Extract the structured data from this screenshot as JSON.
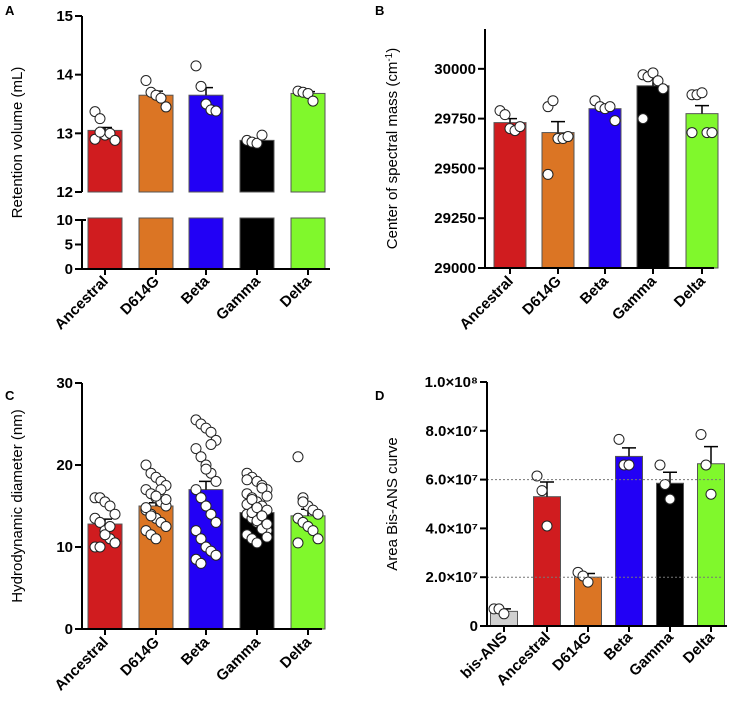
{
  "colors": {
    "Ancestral": "#d01c1f",
    "D614G": "#db7524",
    "Beta": "#2200f5",
    "Gamma": "#000000",
    "Delta": "#80f82c",
    "bis-ANS": "#d0d0d0"
  },
  "chart_data": [
    {
      "panel": "A",
      "type": "bar",
      "ylabel": "Retention volume (mL)",
      "broken_axis": true,
      "ylim_lower": [
        0,
        10
      ],
      "ylim_upper": [
        12,
        15
      ],
      "tick_labels_lower": [
        "0",
        "5",
        "10"
      ],
      "tick_values_lower": [
        0,
        5,
        10
      ],
      "tick_labels_upper": [
        "12",
        "13",
        "14",
        "15"
      ],
      "tick_values_upper": [
        12,
        13,
        14,
        15
      ],
      "categories": [
        "Ancestral",
        "D614G",
        "Beta",
        "Gamma",
        "Delta"
      ],
      "values": [
        13.05,
        13.65,
        13.65,
        12.88,
        13.68
      ],
      "sem": [
        0.05,
        0.07,
        0.13,
        0.02,
        0.03
      ],
      "points": [
        [
          13.37,
          13.25,
          12.97,
          13.0,
          12.88,
          12.9,
          13.02
        ],
        [
          13.9,
          13.7,
          13.65,
          13.6,
          13.45
        ],
        [
          14.15,
          13.8,
          13.5,
          13.4,
          13.38
        ],
        [
          12.88,
          12.85,
          12.83,
          12.97
        ],
        [
          13.72,
          13.7,
          13.68,
          13.55
        ]
      ]
    },
    {
      "panel": "B",
      "type": "bar",
      "ylabel": "Center of spectral mass (cm",
      "ylabel_sup": "-1",
      "ylabel_end": ")",
      "ylim": [
        29000,
        30200
      ],
      "tick_labels": [
        "29000",
        "29250",
        "29500",
        "29750",
        "30000"
      ],
      "tick_values": [
        29000,
        29250,
        29500,
        29750,
        30000
      ],
      "categories": [
        "Ancestral",
        "D614G",
        "Beta",
        "Gamma",
        "Delta"
      ],
      "values": [
        29730,
        29680,
        29800,
        29915,
        29775
      ],
      "sem": [
        20,
        55,
        20,
        35,
        40
      ],
      "points": [
        [
          29790,
          29770,
          29700,
          29690,
          29710
        ],
        [
          29810,
          29840,
          29650,
          29650,
          29660,
          29470
        ],
        [
          29840,
          29810,
          29800,
          29810,
          29740
        ],
        [
          29970,
          29960,
          29980,
          29940,
          29900,
          29750
        ],
        [
          29870,
          29870,
          29880,
          29680,
          29680,
          29680
        ]
      ]
    },
    {
      "panel": "C",
      "type": "bar",
      "ylabel": "Hydrodynamic diameter (nm)",
      "ylim": [
        0,
        30
      ],
      "tick_labels": [
        "0",
        "10",
        "20",
        "30"
      ],
      "tick_values": [
        0,
        10,
        20,
        30
      ],
      "categories": [
        "Ancestral",
        "D614G",
        "Beta",
        "Gamma",
        "Delta"
      ],
      "values": [
        12.8,
        15.0,
        17.0,
        14.2,
        13.8
      ],
      "sem": [
        0.6,
        0.4,
        1.0,
        0.3,
        0.8
      ],
      "points": [
        [
          16,
          16,
          15.5,
          15,
          14,
          13.5,
          13,
          12,
          11,
          10.5,
          10,
          10,
          11.5,
          12.5
        ],
        [
          20,
          19,
          18.5,
          18,
          17.5,
          17,
          16.5,
          16,
          15.5,
          15,
          14.5,
          14,
          13.5,
          13,
          12.5,
          12,
          11.5,
          11,
          17,
          15.8,
          14.8,
          13.8,
          16.2
        ],
        [
          25.5,
          25,
          24.5,
          24,
          23,
          22,
          21,
          20,
          19,
          18,
          17,
          16,
          15,
          14,
          13,
          12,
          11,
          10,
          9.5,
          9,
          8.5,
          8,
          19.5,
          22.5
        ],
        [
          19,
          18.5,
          18,
          17.5,
          17,
          16.5,
          16,
          15.5,
          15,
          14.5,
          14,
          13.5,
          13,
          12.5,
          12,
          11.5,
          11,
          10.5,
          17.2,
          16.2,
          15.2,
          14.2,
          13.2,
          12.2,
          11.2,
          18.2,
          15.8,
          14.8,
          13.8,
          12.8
        ],
        [
          21,
          16,
          15,
          14.5,
          14,
          13.5,
          13,
          12.5,
          12,
          11,
          10.5,
          15.5
        ]
      ]
    },
    {
      "panel": "D",
      "type": "bar",
      "ylabel": "Area Bis-ANS curve",
      "ylim": [
        0,
        100000000
      ],
      "tick_labels": [
        "0",
        "2.0×10⁷",
        "4.0×10⁷",
        "6.0×10⁷",
        "8.0×10⁷",
        "1.0×10⁸"
      ],
      "tick_values": [
        0,
        20000000,
        40000000,
        60000000,
        80000000,
        100000000
      ],
      "reference_lines": [
        60000000,
        20000000
      ],
      "categories": [
        "bis-ANS",
        "Ancestral",
        "D614G",
        "Beta",
        "Gamma",
        "Delta"
      ],
      "values": [
        6000000,
        53000000,
        20000000,
        69500000,
        58500000,
        66500000
      ],
      "sem": [
        1000000,
        6000000,
        1500000,
        3500000,
        4500000,
        7000000
      ],
      "points": [
        [
          7000000,
          7000000,
          5000000
        ],
        [
          61500000,
          55500000,
          41000000
        ],
        [
          22000000,
          20500000,
          18000000
        ],
        [
          76500000,
          66000000,
          66000000
        ],
        [
          66000000,
          58000000,
          52000000
        ],
        [
          78500000,
          66000000,
          54000000
        ]
      ]
    }
  ]
}
